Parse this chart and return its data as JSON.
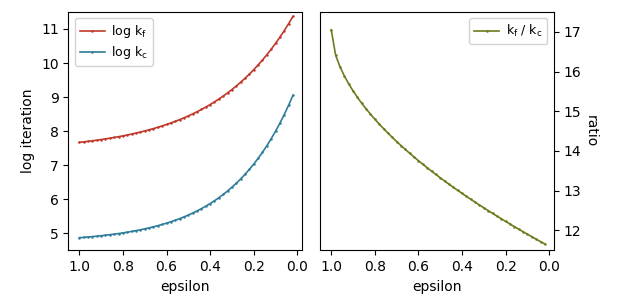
{
  "color_kf": "#c0392b",
  "color_kc": "#2e7d9a",
  "color_ratio": "#6b7c1e",
  "left_ylabel": "log iteration",
  "right_ylabel": "ratio",
  "xlabel": "epsilon",
  "left_ylim": [
    4.5,
    11.5
  ],
  "right_ylim": [
    11.5,
    17.5
  ],
  "left_yticks": [
    5,
    6,
    7,
    8,
    9,
    10,
    11
  ],
  "right_yticks": [
    12,
    13,
    14,
    15,
    16,
    17
  ],
  "xticks": [
    1.0,
    0.8,
    0.6,
    0.4,
    0.2,
    0.0
  ],
  "marker": "o",
  "marker_size": 1.8,
  "linewidth": 1.2,
  "figsize": [
    6.22,
    2.98
  ],
  "dpi": 100
}
